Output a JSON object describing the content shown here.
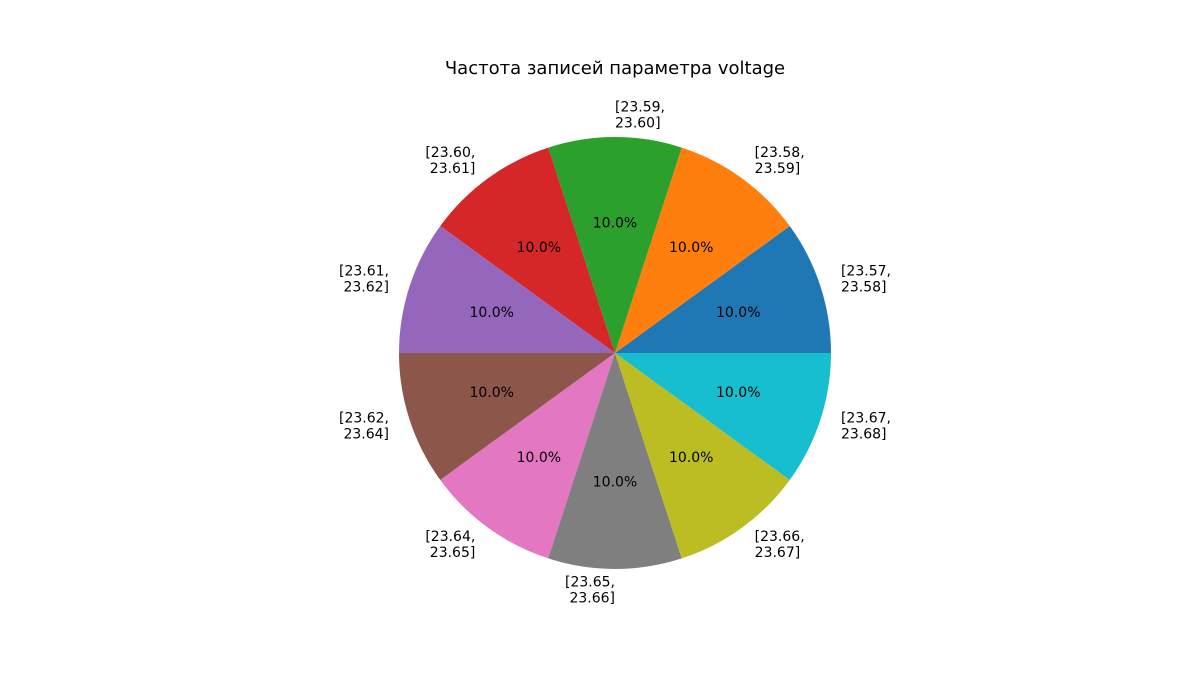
{
  "chart_data": {
    "type": "pie",
    "title": "Частота записей параметра voltage",
    "start_angle_deg": 0,
    "direction": "counterclockwise",
    "slices": [
      {
        "label": "[23.57,\n23.58]",
        "value": 10.0,
        "pct_label": "10.0%",
        "color": "#1f77b4"
      },
      {
        "label": "[23.58,\n23.59]",
        "value": 10.0,
        "pct_label": "10.0%",
        "color": "#ff7f0e"
      },
      {
        "label": "[23.59,\n23.60]",
        "value": 10.0,
        "pct_label": "10.0%",
        "color": "#2ca02c"
      },
      {
        "label": "[23.60,\n23.61]",
        "value": 10.0,
        "pct_label": "10.0%",
        "color": "#d62728"
      },
      {
        "label": "[23.61,\n23.62]",
        "value": 10.0,
        "pct_label": "10.0%",
        "color": "#9467bd"
      },
      {
        "label": "[23.62,\n23.64]",
        "value": 10.0,
        "pct_label": "10.0%",
        "color": "#8c564b"
      },
      {
        "label": "[23.64,\n23.65]",
        "value": 10.0,
        "pct_label": "10.0%",
        "color": "#e377c2"
      },
      {
        "label": "[23.65,\n23.66]",
        "value": 10.0,
        "pct_label": "10.0%",
        "color": "#7f7f7f"
      },
      {
        "label": "[23.66,\n23.67]",
        "value": 10.0,
        "pct_label": "10.0%",
        "color": "#bcbd22"
      },
      {
        "label": "[23.67,\n23.68]",
        "value": 10.0,
        "pct_label": "10.0%",
        "color": "#17becf"
      }
    ]
  }
}
